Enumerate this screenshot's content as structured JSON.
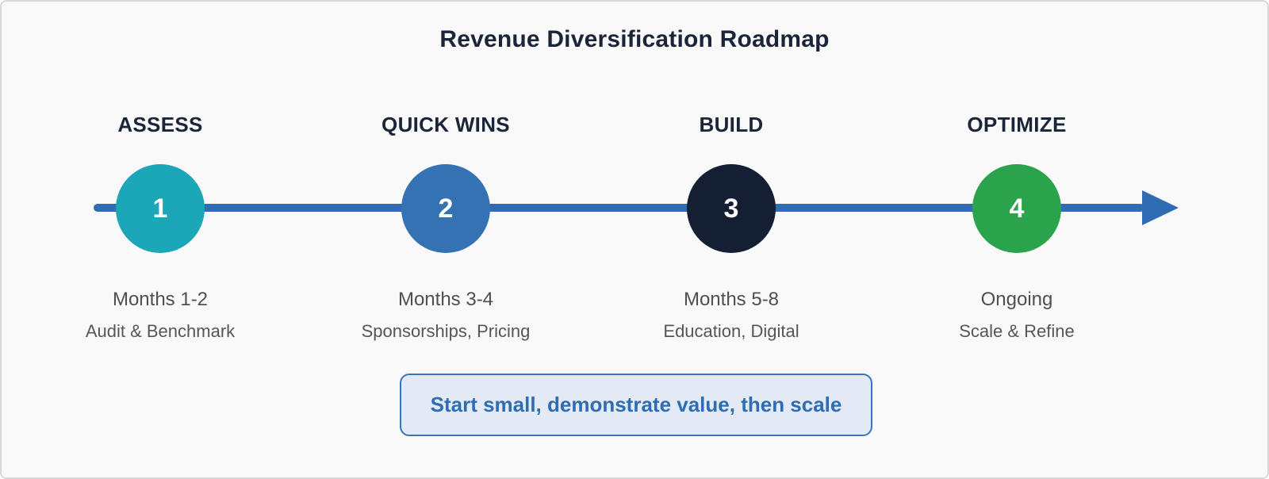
{
  "title": "Revenue Diversification Roadmap",
  "colors": {
    "background": "#F9F9F9",
    "frame_border": "#D9D9DC",
    "title_text": "#1B2539",
    "timeline_line": "#2F6CB3",
    "muted_text": "#515151",
    "callout_background": "#E3EAF6",
    "callout_border": "#3B74B6",
    "callout_text": "#2E6DB3"
  },
  "stages": [
    {
      "label": "ASSESS",
      "number": "1",
      "color": "#1CA7B8",
      "timeframe": "Months 1-2",
      "description": "Audit & Benchmark"
    },
    {
      "label": "QUICK WINS",
      "number": "2",
      "color": "#3572B3",
      "timeframe": "Months 3-4",
      "description": "Sponsorships, Pricing"
    },
    {
      "label": "BUILD",
      "number": "3",
      "color": "#151F33",
      "timeframe": "Months 5-8",
      "description": "Education, Digital"
    },
    {
      "label": "OPTIMIZE",
      "number": "4",
      "color": "#2BA34C",
      "timeframe": "Ongoing",
      "description": "Scale & Refine"
    }
  ],
  "callout": {
    "text": "Start small, demonstrate value, then scale"
  }
}
